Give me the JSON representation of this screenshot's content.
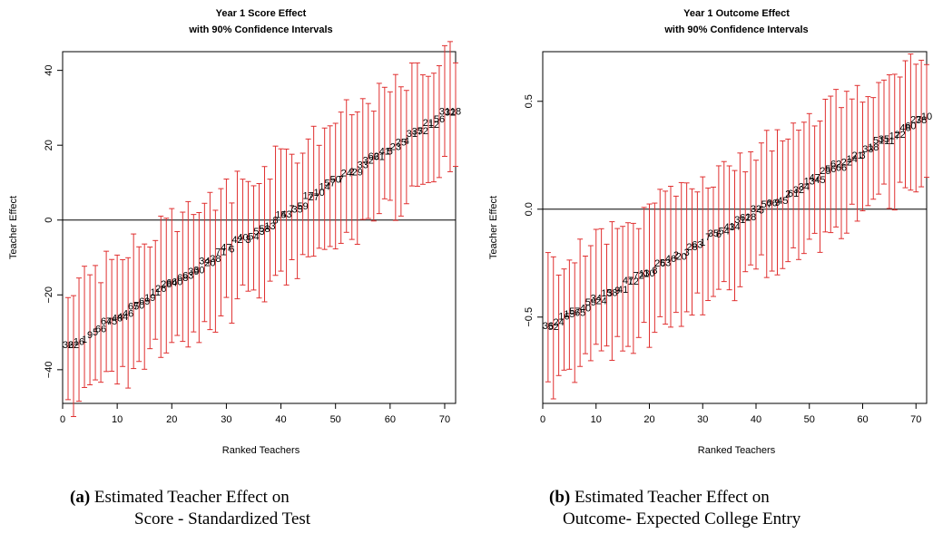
{
  "chart_data": [
    {
      "type": "scatter",
      "title": "Year 1 Score Effect",
      "subtitle": "with 90% Confidence Intervals",
      "xlabel": "Ranked Teachers",
      "ylabel": "Teacher Effect",
      "xlim": [
        0,
        72
      ],
      "ylim": [
        -49,
        45
      ],
      "xticks": [
        "0",
        "10",
        "20",
        "30",
        "40",
        "50",
        "60",
        "70"
      ],
      "yticks": [
        "−40",
        "−20",
        "0",
        "20",
        "40"
      ],
      "ytick_values": [
        -40,
        -20,
        0,
        20,
        40
      ],
      "reference_line": 0,
      "errorbar_color": "#e03030",
      "labels": [
        "36",
        "22",
        "16",
        "1",
        "9",
        "5",
        "66",
        "67",
        "45",
        "48",
        "44",
        "46",
        "65",
        "70",
        "69",
        "19",
        "11",
        "26",
        "28",
        "64",
        "60",
        "68",
        "63",
        "39",
        "30",
        "34",
        "20",
        "38",
        "71",
        "47",
        "6",
        "42",
        "40",
        "3",
        "54",
        "53",
        "58",
        "13",
        "8",
        "15",
        "43",
        "7",
        "35",
        "59",
        "17",
        "27",
        "10",
        "14",
        "57",
        "50",
        "7",
        "24",
        "2",
        "29",
        "33",
        "32",
        "62",
        "61",
        "41",
        "5",
        "23",
        "25",
        "4",
        "31",
        "37",
        "52",
        "21",
        "12",
        "56",
        "31",
        "32",
        "18"
      ],
      "y_start": -34,
      "y_end": 30,
      "ci_low_first": -48,
      "ci_high_last": 42
    },
    {
      "type": "scatter",
      "title": "Year 1 Outcome Effect",
      "subtitle": "with 90% Confidence Intervals",
      "xlabel": "Ranked Teachers",
      "ylabel": "Teacher Effect",
      "xlim": [
        0,
        72
      ],
      "ylim": [
        -0.9,
        0.73
      ],
      "xticks": [
        "0",
        "10",
        "20",
        "30",
        "40",
        "50",
        "60",
        "70"
      ],
      "yticks": [
        "−0.5",
        "0.0",
        "0.5"
      ],
      "ytick_values": [
        -0.5,
        0,
        0.5
      ],
      "reference_line": 0,
      "errorbar_color": "#e03030",
      "labels": [
        "36",
        "52",
        "24",
        "16",
        "15",
        "57",
        "65",
        "40",
        "59",
        "34",
        "24",
        "13",
        "58",
        "9",
        "41",
        "47",
        "12",
        "72",
        "11",
        "30",
        "8",
        "26",
        "53",
        "46",
        "2",
        "20",
        "3",
        "28",
        "63",
        "1",
        "7",
        "35",
        "6",
        "54",
        "43",
        "14",
        "31",
        "62",
        "18",
        "32",
        "5",
        "57",
        "66",
        "9",
        "45",
        "2",
        "61",
        "32",
        "34",
        "13",
        "47",
        "45",
        "25",
        "56",
        "62",
        "66",
        "22",
        "14",
        "21",
        "3",
        "33",
        "18",
        "51",
        "35",
        "11",
        "17",
        "22",
        "48",
        "60",
        "27",
        "38",
        "10"
      ],
      "y_start": -0.55,
      "y_end": 0.43,
      "ci_low_first": -0.8,
      "ci_high_last": 0.67
    }
  ],
  "captions": {
    "a": {
      "tag": "(a)",
      "line1": "Estimated Teacher Effect on",
      "line2": "Score - Standardized Test"
    },
    "b": {
      "tag": "(b)",
      "line1": "Estimated Teacher Effect on",
      "line2": "Outcome- Expected College Entry"
    }
  }
}
